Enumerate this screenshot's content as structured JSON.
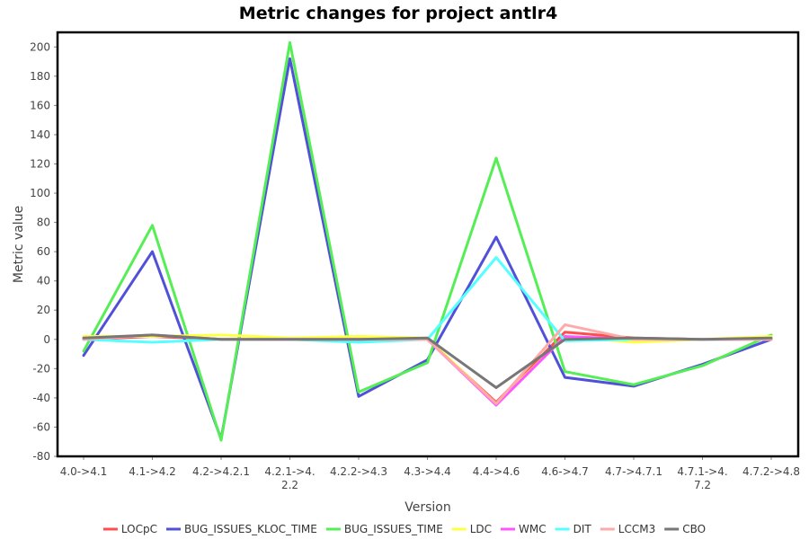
{
  "chart_data": {
    "type": "line",
    "title": "Metric changes for project antlr4",
    "xlabel": "Version",
    "ylabel": "Metric value",
    "ylim": [
      -80,
      210
    ],
    "yticks": [
      -80,
      -60,
      -40,
      -20,
      0,
      20,
      40,
      60,
      80,
      100,
      120,
      140,
      160,
      180,
      200
    ],
    "grid": false,
    "legend_position": "bottom",
    "categories": [
      "4.0->4.1",
      "4.1->4.2",
      "4.2->4.2.1",
      "4.2.1->4.2.2",
      "4.2.2->4.3",
      "4.3->4.4",
      "4.4->4.6",
      "4.6->4.7",
      "4.7->4.7.1",
      "4.7.1->4.7.2",
      "4.7.2->4.8"
    ],
    "category_lines": [
      [
        "4.0->4.1"
      ],
      [
        "4.1->4.2"
      ],
      [
        "4.2->4.2.1"
      ],
      [
        "4.2.1->4.",
        "2.2"
      ],
      [
        "4.2.2->4.3"
      ],
      [
        "4.3->4.4"
      ],
      [
        "4.4->4.6"
      ],
      [
        "4.6->4.7"
      ],
      [
        "4.7->4.7.1"
      ],
      [
        "4.7.1->4.",
        "7.2"
      ],
      [
        "4.7.2->4.8"
      ]
    ],
    "series": [
      {
        "name": "LOCpC",
        "color": "#ff4d4d",
        "values": [
          0,
          2,
          0,
          0,
          0,
          0,
          -43,
          5,
          1,
          0,
          0
        ]
      },
      {
        "name": "BUG_ISSUES_KLOC_TIME",
        "color": "#5050d8",
        "values": [
          -11,
          60,
          -68,
          192,
          -39,
          -14,
          70,
          -26,
          -32,
          -17,
          0
        ]
      },
      {
        "name": "BUG_ISSUES_TIME",
        "color": "#55ee55",
        "values": [
          -8,
          78,
          -69,
          203,
          -36,
          -16,
          124,
          -22,
          -31,
          -18,
          3
        ]
      },
      {
        "name": "LDC",
        "color": "#ffff44",
        "values": [
          2,
          2,
          3,
          1,
          2,
          1,
          -44,
          2,
          -2,
          0,
          2
        ]
      },
      {
        "name": "WMC",
        "color": "#ff55ff",
        "values": [
          0,
          3,
          0,
          0,
          0,
          0,
          -45,
          2,
          0,
          0,
          0
        ]
      },
      {
        "name": "DIT",
        "color": "#55ffff",
        "values": [
          0,
          -2,
          0,
          0,
          -2,
          0,
          56,
          -1,
          0,
          0,
          0
        ]
      },
      {
        "name": "LCCM3",
        "color": "#ffaaaa",
        "values": [
          0,
          3,
          0,
          0,
          0,
          0,
          -44,
          10,
          0,
          0,
          0
        ]
      },
      {
        "name": "CBO",
        "color": "#777777",
        "values": [
          1,
          3,
          0,
          0,
          0,
          1,
          -33,
          0,
          1,
          0,
          1
        ]
      }
    ]
  }
}
